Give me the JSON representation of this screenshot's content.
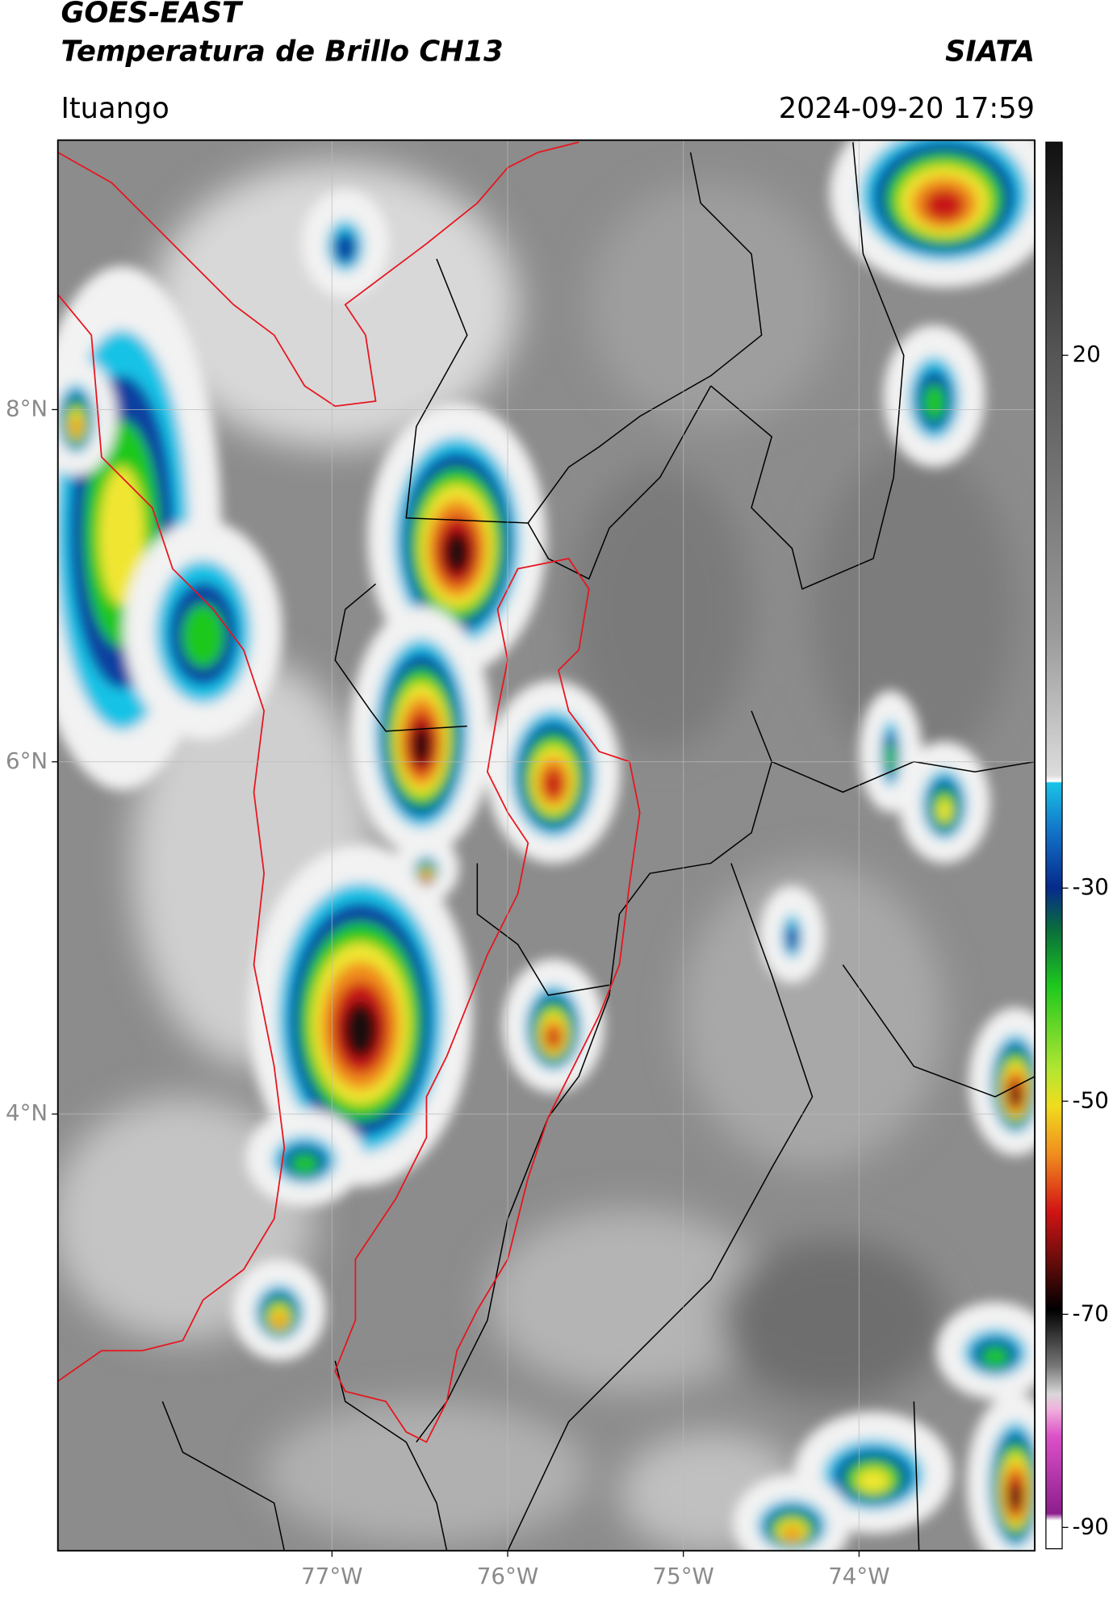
{
  "header": {
    "title": "GOES-EAST",
    "subtitle": "Temperatura de Brillo CH13",
    "source": "SIATA",
    "location": "Ituango",
    "datetime": "2024-09-20 17:59"
  },
  "map": {
    "xlim": [
      -78.56,
      -73.0
    ],
    "ylim": [
      1.52,
      9.53
    ],
    "xticks": [
      {
        "value": -77,
        "label": "77°W"
      },
      {
        "value": -76,
        "label": "76°W"
      },
      {
        "value": -75,
        "label": "75°W"
      },
      {
        "value": -74,
        "label": "74°W"
      }
    ],
    "yticks": [
      {
        "value": 8,
        "label": "8°N"
      },
      {
        "value": 6,
        "label": "6°N"
      },
      {
        "value": 4,
        "label": "4°N"
      }
    ],
    "grid": true
  },
  "colorbar": {
    "lim": [
      -92,
      40
    ],
    "ticks": [
      20,
      -30,
      -50,
      -70,
      -90
    ]
  }
}
